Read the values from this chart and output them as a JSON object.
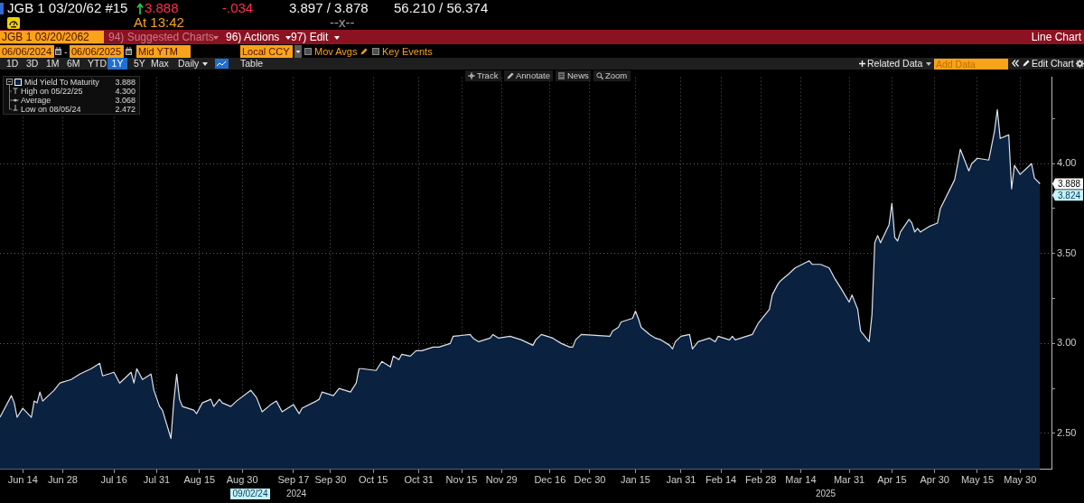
{
  "chart_data": {
    "type": "area",
    "title": "JGB 1 03/20/62 #15",
    "x": [
      "2024-06-06",
      "2024-06-10",
      "2024-06-11",
      "2024-06-12",
      "2024-06-14",
      "2024-06-17",
      "2024-06-18",
      "2024-06-19",
      "2024-06-20",
      "2024-06-21",
      "2024-06-25",
      "2024-06-27",
      "2024-07-01",
      "2024-07-04",
      "2024-07-08",
      "2024-07-11",
      "2024-07-12",
      "2024-07-16",
      "2024-07-18",
      "2024-07-22",
      "2024-07-23",
      "2024-07-24",
      "2024-07-26",
      "2024-07-29",
      "2024-07-30",
      "2024-08-01",
      "2024-08-02",
      "2024-08-05",
      "2024-08-06",
      "2024-08-07",
      "2024-08-08",
      "2024-08-09",
      "2024-08-13",
      "2024-08-14",
      "2024-08-16",
      "2024-08-19",
      "2024-08-20",
      "2024-08-22",
      "2024-08-23",
      "2024-08-26",
      "2024-08-28",
      "2024-09-02",
      "2024-09-04",
      "2024-09-06",
      "2024-09-09",
      "2024-09-11",
      "2024-09-13",
      "2024-09-17",
      "2024-09-19",
      "2024-09-20",
      "2024-09-25",
      "2024-09-26",
      "2024-09-27",
      "2024-10-01",
      "2024-10-03",
      "2024-10-07",
      "2024-10-09",
      "2024-10-10",
      "2024-10-11",
      "2024-10-16",
      "2024-10-18",
      "2024-10-21",
      "2024-10-22",
      "2024-10-24",
      "2024-10-25",
      "2024-10-28",
      "2024-10-30",
      "2024-11-01",
      "2024-11-05",
      "2024-11-07",
      "2024-11-11",
      "2024-11-12",
      "2024-11-18",
      "2024-11-19",
      "2024-11-21",
      "2024-11-25",
      "2024-11-26",
      "2024-11-28",
      "2024-12-02",
      "2024-12-04",
      "2024-12-06",
      "2024-12-10",
      "2024-12-11",
      "2024-12-13",
      "2024-12-17",
      "2024-12-18",
      "2024-12-20",
      "2024-12-23",
      "2024-12-24",
      "2024-12-25",
      "2024-12-27",
      "2025-01-06",
      "2025-01-07",
      "2025-01-09",
      "2025-01-10",
      "2025-01-14",
      "2025-01-15",
      "2025-01-16",
      "2025-01-17",
      "2025-01-20",
      "2025-01-22",
      "2025-01-24",
      "2025-01-27",
      "2025-01-28",
      "2025-01-29",
      "2025-01-31",
      "2025-02-03",
      "2025-02-04",
      "2025-02-06",
      "2025-02-10",
      "2025-02-12",
      "2025-02-13",
      "2025-02-17",
      "2025-02-18",
      "2025-02-19",
      "2025-02-21",
      "2025-02-25",
      "2025-02-27",
      "2025-02-28",
      "2025-03-03",
      "2025-03-04",
      "2025-03-05",
      "2025-03-06",
      "2025-03-07",
      "2025-03-10",
      "2025-03-12",
      "2025-03-17",
      "2025-03-18",
      "2025-03-21",
      "2025-03-24",
      "2025-03-26",
      "2025-03-28",
      "2025-03-31",
      "2025-04-01",
      "2025-04-03",
      "2025-04-04",
      "2025-04-07",
      "2025-04-08",
      "2025-04-09",
      "2025-04-10",
      "2025-04-11",
      "2025-04-14",
      "2025-04-15",
      "2025-04-16",
      "2025-04-17",
      "2025-04-18",
      "2025-04-21",
      "2025-04-22",
      "2025-04-23",
      "2025-04-24",
      "2025-04-25",
      "2025-04-28",
      "2025-05-01",
      "2025-05-02",
      "2025-05-07",
      "2025-05-08",
      "2025-05-09",
      "2025-05-12",
      "2025-05-13",
      "2025-05-15",
      "2025-05-19",
      "2025-05-21",
      "2025-05-22",
      "2025-05-23",
      "2025-05-26",
      "2025-05-27",
      "2025-05-28",
      "2025-05-30",
      "2025-06-03",
      "2025-06-04",
      "2025-06-06"
    ],
    "series": [
      {
        "name": "Mid Yield To Maturity",
        "color": "#0b2140",
        "values": [
          2.59,
          2.71,
          2.67,
          2.59,
          2.64,
          2.59,
          2.68,
          2.67,
          2.73,
          2.68,
          2.74,
          2.78,
          2.8,
          2.83,
          2.86,
          2.89,
          2.82,
          2.84,
          2.78,
          2.84,
          2.78,
          2.86,
          2.8,
          2.83,
          2.74,
          2.65,
          2.63,
          2.472,
          2.68,
          2.83,
          2.69,
          2.65,
          2.63,
          2.61,
          2.67,
          2.69,
          2.65,
          2.69,
          2.67,
          2.65,
          2.68,
          2.74,
          2.7,
          2.62,
          2.66,
          2.68,
          2.62,
          2.66,
          2.61,
          2.64,
          2.68,
          2.69,
          2.73,
          2.71,
          2.75,
          2.73,
          2.78,
          2.86,
          2.86,
          2.85,
          2.9,
          2.87,
          2.93,
          2.91,
          2.94,
          2.93,
          2.96,
          2.96,
          2.98,
          2.98,
          3.0,
          3.04,
          3.05,
          3.03,
          3.01,
          3.03,
          3.05,
          3.03,
          3.04,
          3.03,
          3.02,
          2.99,
          3.02,
          3.05,
          3.03,
          3.02,
          3.0,
          2.98,
          2.98,
          3.02,
          3.05,
          3.04,
          3.07,
          3.09,
          3.12,
          3.14,
          3.18,
          3.14,
          3.09,
          3.05,
          3.03,
          3.02,
          2.99,
          2.97,
          3.01,
          3.04,
          3.05,
          2.97,
          3.01,
          3.03,
          3.01,
          3.04,
          3.02,
          3.04,
          3.02,
          3.03,
          3.05,
          3.11,
          3.13,
          3.19,
          3.27,
          3.3,
          3.33,
          3.35,
          3.39,
          3.42,
          3.46,
          3.44,
          3.44,
          3.42,
          3.36,
          3.31,
          3.23,
          3.27,
          3.19,
          3.07,
          3.01,
          3.16,
          3.56,
          3.6,
          3.56,
          3.66,
          3.78,
          3.59,
          3.57,
          3.62,
          3.69,
          3.67,
          3.62,
          3.64,
          3.62,
          3.65,
          3.67,
          3.75,
          3.91,
          3.99,
          4.08,
          3.96,
          4.0,
          4.03,
          4.02,
          4.18,
          4.3,
          4.14,
          4.16,
          3.86,
          3.99,
          3.94,
          4.0,
          3.92,
          3.888
        ]
      }
    ],
    "xlim": [
      "2024-06-06",
      "2025-06-10"
    ],
    "xticks": [
      {
        "value": "2024-06-14",
        "label": "Jun 14"
      },
      {
        "value": "2024-06-28",
        "label": "Jun 28"
      },
      {
        "value": "2024-07-16",
        "label": "Jul 16"
      },
      {
        "value": "2024-07-31",
        "label": "Jul 31"
      },
      {
        "value": "2024-08-15",
        "label": "Aug 15"
      },
      {
        "value": "2024-08-30",
        "label": "Aug 30"
      },
      {
        "value": "2024-09-17",
        "label": "Sep 17"
      },
      {
        "value": "2024-09-30",
        "label": "Sep 30"
      },
      {
        "value": "2024-10-15",
        "label": "Oct 15"
      },
      {
        "value": "2024-10-31",
        "label": "Oct 31"
      },
      {
        "value": "2024-11-15",
        "label": "Nov 15"
      },
      {
        "value": "2024-11-29",
        "label": "Nov 29"
      },
      {
        "value": "2024-12-16",
        "label": "Dec 16"
      },
      {
        "value": "2024-12-30",
        "label": "Dec 30"
      },
      {
        "value": "2025-01-15",
        "label": "Jan 15"
      },
      {
        "value": "2025-01-31",
        "label": "Jan 31"
      },
      {
        "value": "2025-02-14",
        "label": "Feb 14"
      },
      {
        "value": "2025-02-28",
        "label": "Feb 28"
      },
      {
        "value": "2025-03-14",
        "label": "Mar 14"
      },
      {
        "value": "2025-03-31",
        "label": "Mar 31"
      },
      {
        "value": "2025-04-15",
        "label": "Apr 15"
      },
      {
        "value": "2025-04-30",
        "label": "Apr 30"
      },
      {
        "value": "2025-05-15",
        "label": "May 15"
      },
      {
        "value": "2025-05-30",
        "label": "May 30"
      }
    ],
    "ylim": [
      2.3,
      4.48
    ],
    "yticks": [
      {
        "value": 2.5,
        "label": "2.50"
      },
      {
        "value": 2.75,
        "label": null
      },
      {
        "value": 3,
        "label": "3.00"
      },
      {
        "value": 3.25,
        "label": null
      },
      {
        "value": 3.5,
        "label": "3.50"
      },
      {
        "value": 3.75,
        "label": null
      },
      {
        "value": 4,
        "label": "4.00"
      },
      {
        "value": 4.25,
        "label": null
      }
    ],
    "grid": true,
    "legend": "top left",
    "annotations": [
      "3.888",
      "-.034",
      "3.897 / 3.878",
      "56.210 / 56.374",
      "At 13:42",
      "--x--",
      "JGB 1 03/20/2062",
      "94) Suggested Charts",
      "96) Actions",
      "97) Edit",
      "Line Chart",
      "06/06/2024",
      "-",
      "06/06/2025",
      "Mid YTM",
      "Local CCY",
      "Mov Avgs",
      "Key Events",
      "1D",
      "3D",
      "1M",
      "6M",
      "YTD",
      "1Y",
      "5Y",
      "Max",
      "Daily",
      "Table",
      "Related Data",
      "Add Data",
      "Edit Chart",
      "Track",
      "Annotate",
      "News",
      "Zoom",
      "3.888",
      "High on 05/22/25",
      "4.300",
      "Average",
      "3.068",
      "Low on 08/05/24",
      "2.472",
      "09/02/24",
      "2024",
      "2025",
      {
        "text": "3.888",
        "y": 3.888
      },
      {
        "text": "3.824",
        "y": 3.824
      }
    ]
  }
}
